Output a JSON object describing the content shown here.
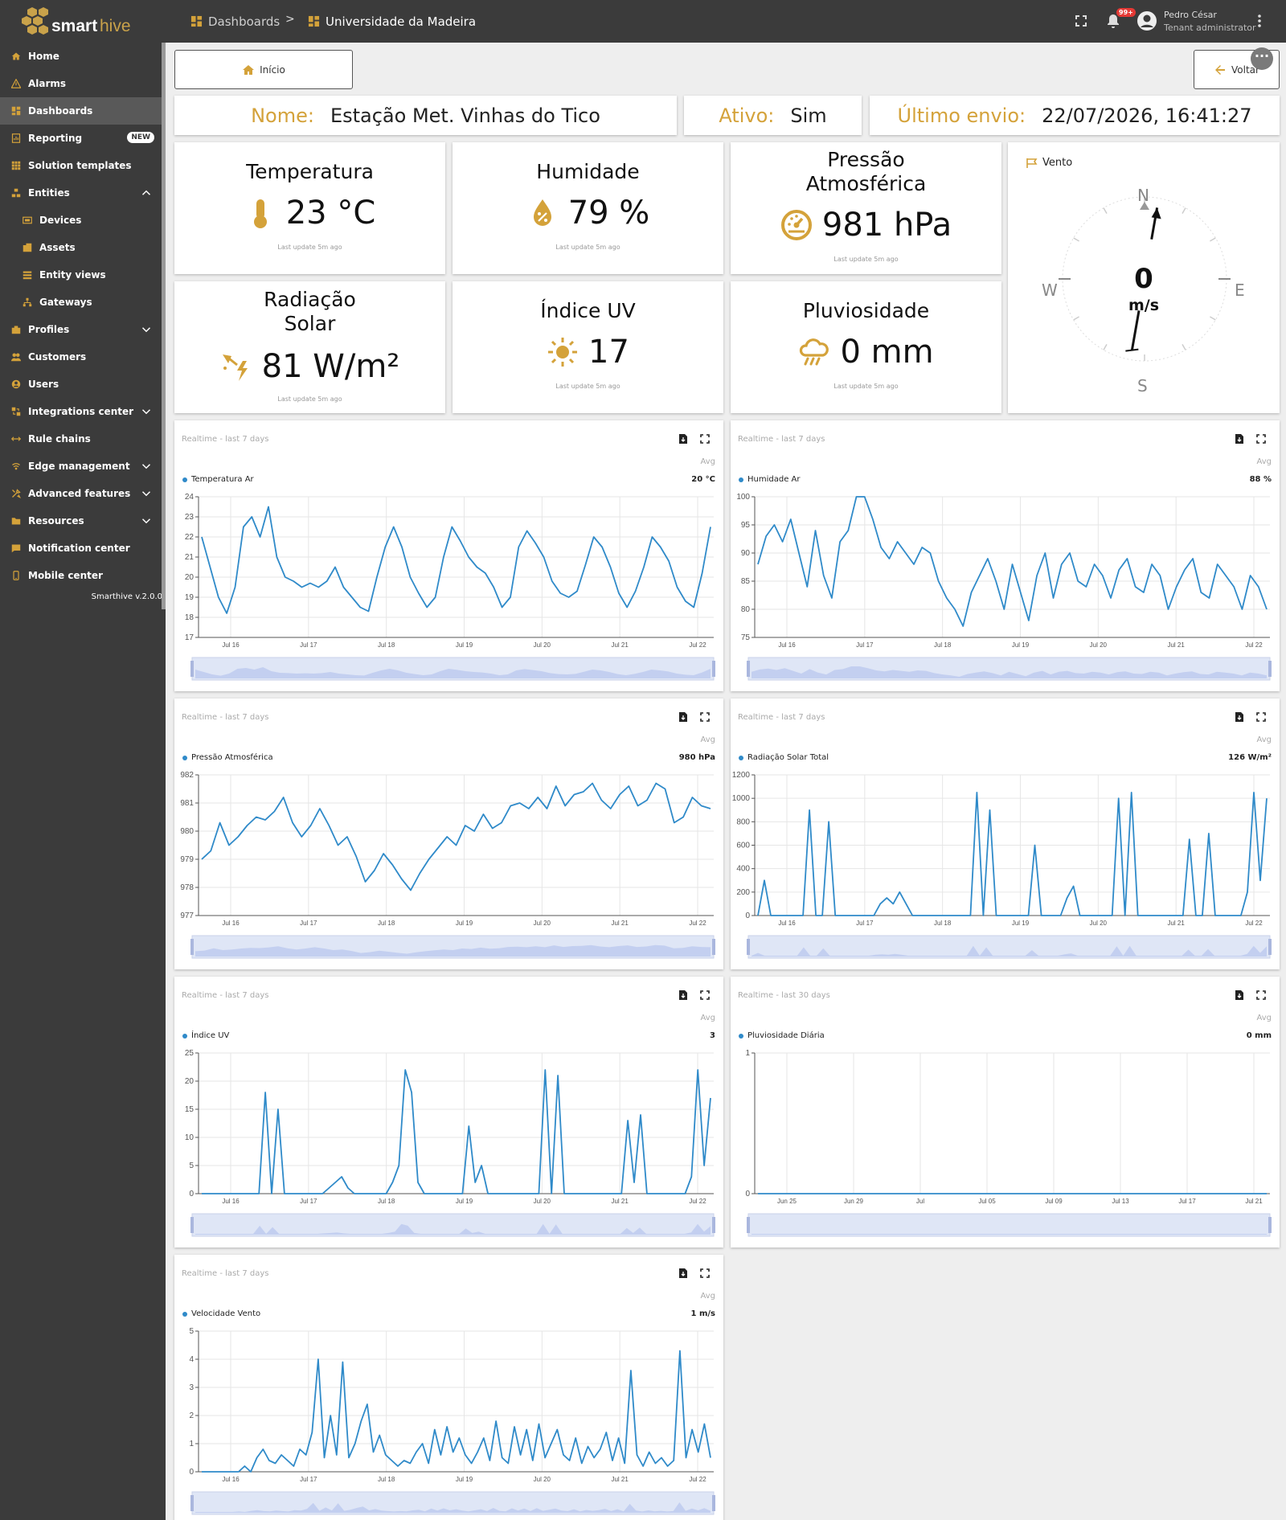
{
  "brand": {
    "name_a": "smart",
    "name_b": "hive"
  },
  "breadcrumb": [
    {
      "label": "Dashboards"
    },
    {
      "label": "Universidade da Madeira"
    }
  ],
  "breadcrumb_sep": ">",
  "notifications": {
    "count": "99+"
  },
  "user": {
    "name": "Pedro César",
    "role": "Tenant administrator"
  },
  "colors": {
    "accent": "#d4a23a",
    "line": "#2f8ac9",
    "sidebar": "#3b3b3b"
  },
  "sidebar": {
    "items": [
      {
        "label": "Home",
        "icon": "home-icon"
      },
      {
        "label": "Alarms",
        "icon": "warning-icon"
      },
      {
        "label": "Dashboards",
        "icon": "dashboard-icon",
        "selected": true
      },
      {
        "label": "Reporting",
        "icon": "report-icon",
        "badge": "NEW"
      },
      {
        "label": "Solution templates",
        "icon": "grid-icon"
      },
      {
        "label": "Entities",
        "icon": "entities-icon",
        "expanded": true
      },
      {
        "label": "Devices",
        "icon": "device-icon",
        "sub": true
      },
      {
        "label": "Assets",
        "icon": "asset-icon",
        "sub": true
      },
      {
        "label": "Entity views",
        "icon": "entity-view-icon",
        "sub": true
      },
      {
        "label": "Gateways",
        "icon": "gateway-icon",
        "sub": true
      },
      {
        "label": "Profiles",
        "icon": "profile-icon",
        "collapsed": true
      },
      {
        "label": "Customers",
        "icon": "customers-icon"
      },
      {
        "label": "Users",
        "icon": "user-icon"
      },
      {
        "label": "Integrations center",
        "icon": "integration-icon",
        "collapsed": true
      },
      {
        "label": "Rule chains",
        "icon": "rule-chain-icon"
      },
      {
        "label": "Edge management",
        "icon": "edge-icon",
        "collapsed": true
      },
      {
        "label": "Advanced features",
        "icon": "tools-icon",
        "collapsed": true
      },
      {
        "label": "Resources",
        "icon": "folder-icon",
        "collapsed": true
      },
      {
        "label": "Notification center",
        "icon": "notification-icon"
      },
      {
        "label": "Mobile center",
        "icon": "mobile-icon"
      }
    ],
    "version": "Smarthive v.2.0.0"
  },
  "nav_buttons": {
    "home": "Início",
    "back": "Voltar"
  },
  "station": {
    "name_label": "Nome:",
    "name": "Estação Met. Vinhas do Tico",
    "active_label": "Ativo:",
    "active": "Sim",
    "last_label": "Último envio:",
    "last": "22/07/2026, 16:41:27"
  },
  "tiles": [
    {
      "title": "Temperatura",
      "value": "23 °C",
      "icon": "thermometer-icon",
      "foot": "Last update 5m ago"
    },
    {
      "title": "Humidade",
      "value": "79 %",
      "icon": "humidity-drop-icon",
      "foot": "Last update 5m ago"
    },
    {
      "title": "Pressão\nAtmosférica",
      "value": "981 hPa",
      "icon": "gauge-icon",
      "foot": "Last update 5m ago"
    },
    {
      "title": "Radiação\nSolar",
      "value": "81 W/m²",
      "icon": "solar-radiation-icon",
      "foot": "Last update 5m ago"
    },
    {
      "title": "Índice UV",
      "value": "17",
      "icon": "sun-icon",
      "foot": "Last update 5m ago"
    },
    {
      "title": "Pluviosidade",
      "value": "0 mm",
      "icon": "rain-cloud-icon",
      "foot": "Last update 5m ago"
    }
  ],
  "wind": {
    "title": "Vento",
    "value": "0",
    "unit": "m/s",
    "N": "N",
    "S": "S",
    "E": "E",
    "W": "W",
    "direction_deg": 10
  },
  "chart_data": [
    {
      "type": "line",
      "subtitle": "Realtime - last 7 days",
      "avg": "Avg",
      "legend": "Temperatura Ar",
      "legend_value": "20 °C",
      "ylim": [
        17,
        24
      ],
      "yticks": [
        17,
        18,
        19,
        20,
        21,
        22,
        23,
        24
      ],
      "xticks": [
        "Jul 16",
        "Jul 17",
        "Jul 18",
        "Jul 19",
        "Jul 20",
        "Jul 21",
        "Jul 22"
      ],
      "values": [
        22,
        20.5,
        19,
        18.2,
        19.5,
        22.5,
        23,
        22,
        23.5,
        21,
        20,
        19.8,
        19.5,
        19.7,
        19.5,
        19.8,
        20.5,
        19.5,
        19,
        18.5,
        18.3,
        20,
        21.5,
        22.5,
        21.5,
        20,
        19.2,
        18.5,
        19,
        21,
        22.5,
        21.8,
        21,
        20.5,
        20.2,
        19.5,
        18.5,
        19,
        21.5,
        22.3,
        21.7,
        21,
        19.8,
        19.2,
        19,
        19.3,
        20.6,
        22,
        21.5,
        20.5,
        19.2,
        18.5,
        19.3,
        20.5,
        22,
        21.5,
        20.8,
        19.5,
        18.8,
        18.5,
        20.2,
        22.5
      ]
    },
    {
      "type": "line",
      "subtitle": "Realtime - last 7 days",
      "avg": "Avg",
      "legend": "Humidade Ar",
      "legend_value": "88 %",
      "ylim": [
        75,
        100
      ],
      "yticks": [
        75,
        80,
        85,
        90,
        95,
        100
      ],
      "xticks": [
        "Jul 16",
        "Jul 17",
        "Jul 18",
        "Jul 19",
        "Jul 20",
        "Jul 21",
        "Jul 22"
      ],
      "values": [
        88,
        93,
        95,
        92,
        96,
        90,
        84,
        94,
        86,
        82,
        92,
        94,
        100,
        100,
        96,
        91,
        89,
        92,
        90,
        88,
        91,
        90,
        85,
        82,
        80,
        77,
        83,
        86,
        89,
        85,
        80,
        88,
        83,
        78,
        86,
        90,
        82,
        88,
        90,
        85,
        84,
        88,
        86,
        82,
        87,
        89,
        84,
        83,
        88,
        86,
        80,
        84,
        87,
        89,
        83,
        82,
        88,
        86,
        84,
        80,
        86,
        84,
        80
      ]
    },
    {
      "type": "line",
      "subtitle": "Realtime - last 7 days",
      "avg": "Avg",
      "legend": "Pressão Atmosférica",
      "legend_value": "980 hPa",
      "ylim": [
        977,
        982
      ],
      "yticks": [
        977,
        978,
        979,
        980,
        981,
        982
      ],
      "xticks": [
        "Jul 16",
        "Jul 17",
        "Jul 18",
        "Jul 19",
        "Jul 20",
        "Jul 21",
        "Jul 22"
      ],
      "values": [
        979,
        979.3,
        980.3,
        979.5,
        979.8,
        980.2,
        980.5,
        980.4,
        980.7,
        981.2,
        980.3,
        979.8,
        980.2,
        980.8,
        980.2,
        979.5,
        979.8,
        979.1,
        978.2,
        978.6,
        979.2,
        978.8,
        978.3,
        977.9,
        978.5,
        979,
        979.4,
        979.8,
        979.5,
        980.2,
        980,
        980.6,
        980.1,
        980.3,
        980.9,
        981,
        980.8,
        981.2,
        980.8,
        981.6,
        980.9,
        981.3,
        981.4,
        981.7,
        981.1,
        980.8,
        981.3,
        981.6,
        980.9,
        981.1,
        981.7,
        981.5,
        980.3,
        980.5,
        981.2,
        980.9,
        980.8
      ]
    },
    {
      "type": "line",
      "subtitle": "Realtime - last 7 days",
      "avg": "Avg",
      "legend": "Radiação Solar Total",
      "legend_value": "126 W/m²",
      "ylim": [
        0,
        1200
      ],
      "yticks": [
        0,
        200,
        400,
        600,
        800,
        1000,
        1200
      ],
      "xticks": [
        "Jul 16",
        "Jul 17",
        "Jul 18",
        "Jul 19",
        "Jul 20",
        "Jul 21",
        "Jul 22"
      ],
      "values": [
        0,
        300,
        0,
        0,
        0,
        0,
        0,
        0,
        900,
        0,
        0,
        800,
        0,
        0,
        0,
        0,
        0,
        0,
        0,
        100,
        150,
        100,
        200,
        100,
        0,
        0,
        0,
        0,
        0,
        0,
        0,
        0,
        0,
        0,
        1050,
        0,
        900,
        0,
        0,
        0,
        0,
        0,
        0,
        600,
        0,
        0,
        0,
        0,
        150,
        250,
        0,
        0,
        0,
        0,
        0,
        0,
        1000,
        0,
        1050,
        0,
        0,
        0,
        0,
        0,
        0,
        0,
        0,
        650,
        0,
        0,
        700,
        0,
        0,
        0,
        0,
        0,
        200,
        1050,
        300,
        1000
      ]
    },
    {
      "type": "line",
      "subtitle": "Realtime - last 7 days",
      "avg": "Avg",
      "legend": "Índice UV",
      "legend_value": "3",
      "ylim": [
        0,
        25
      ],
      "yticks": [
        0,
        5,
        10,
        15,
        20,
        25
      ],
      "xticks": [
        "Jul 16",
        "Jul 17",
        "Jul 18",
        "Jul 19",
        "Jul 20",
        "Jul 21",
        "Jul 22"
      ],
      "values": [
        0,
        0,
        0,
        0,
        0,
        0,
        0,
        0,
        0,
        0,
        18,
        0,
        15,
        0,
        0,
        0,
        0,
        0,
        0,
        0,
        1,
        2,
        3,
        1,
        0,
        0,
        0,
        0,
        0,
        0,
        2,
        5,
        22,
        18,
        2,
        0,
        0,
        0,
        0,
        0,
        0,
        0,
        12,
        2,
        5,
        0,
        0,
        0,
        0,
        0,
        0,
        0,
        0,
        0,
        22,
        0,
        21,
        0,
        0,
        0,
        0,
        0,
        0,
        0,
        0,
        0,
        0,
        13,
        2,
        14,
        0,
        0,
        0,
        0,
        0,
        0,
        0,
        3,
        22,
        5,
        17
      ]
    },
    {
      "type": "line",
      "subtitle": "Realtime - last 30 days",
      "avg": "Avg",
      "legend": "Pluviosidade Diária",
      "legend_value": "0 mm",
      "ylim": [
        0,
        1
      ],
      "yticks": [
        0,
        1
      ],
      "xticks": [
        "Jun 25",
        "Jun 29",
        "Jul",
        "Jul 05",
        "Jul 09",
        "Jul 13",
        "Jul 17",
        "Jul 21"
      ],
      "values": [
        0,
        0,
        0,
        0,
        0,
        0,
        0,
        0,
        0,
        0,
        0,
        0,
        0,
        0,
        0,
        0,
        0,
        0,
        0,
        0,
        0,
        0,
        0,
        0,
        0,
        0,
        0,
        0,
        0,
        0
      ]
    },
    {
      "type": "line",
      "subtitle": "Realtime - last 7 days",
      "avg": "Avg",
      "legend": "Velocidade Vento",
      "legend_value": "1 m/s",
      "ylim": [
        0,
        5
      ],
      "yticks": [
        0,
        1,
        2,
        3,
        4,
        5
      ],
      "xticks": [
        "Jul 16",
        "Jul 17",
        "Jul 18",
        "Jul 19",
        "Jul 20",
        "Jul 21",
        "Jul 22"
      ],
      "values": [
        0,
        0,
        0,
        0,
        0,
        0,
        0,
        0.2,
        0,
        0.5,
        0.8,
        0.4,
        0.3,
        0.6,
        0.4,
        0.2,
        0.8,
        0.6,
        1.4,
        4,
        0.5,
        2,
        0.6,
        3.9,
        0.5,
        1,
        1.8,
        2.4,
        0.7,
        1.3,
        0.6,
        0.4,
        0.2,
        0.4,
        0.3,
        0.7,
        1,
        0.3,
        1.5,
        0.6,
        1.6,
        0.7,
        1.2,
        0.6,
        0.3,
        0.7,
        1.2,
        0.4,
        1.8,
        0.5,
        0.3,
        1.6,
        0.6,
        1.5,
        0.4,
        1.7,
        0.5,
        1,
        1.5,
        0.6,
        0.4,
        1.2,
        0.3,
        0.9,
        0.5,
        0.8,
        1.4,
        0.4,
        1.2,
        0.3,
        3.6,
        0.6,
        0.2,
        0.7,
        0.3,
        0.5,
        0.2,
        0.4,
        4.3,
        0.5,
        1.5,
        0.7,
        1.7,
        0.5
      ]
    }
  ]
}
